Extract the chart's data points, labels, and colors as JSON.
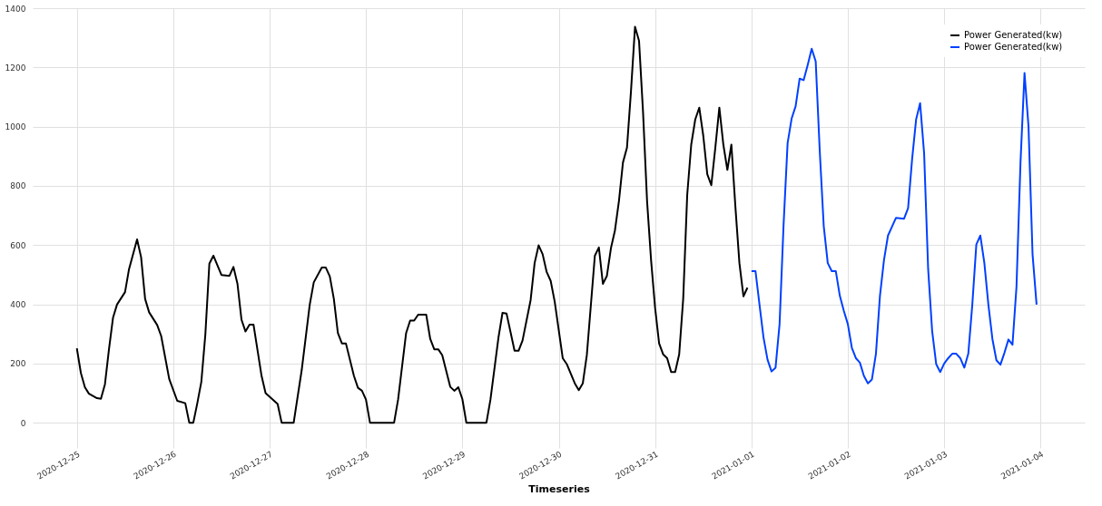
{
  "chart_data": {
    "type": "line",
    "xlabel": "Timeseries",
    "xlim": [
      "2020-12-24T13:00",
      "2021-01-04T11:00"
    ],
    "xticks": [
      {
        "value": "2020-12-25",
        "label": "2020-12-25"
      },
      {
        "value": "2020-12-26",
        "label": "2020-12-26"
      },
      {
        "value": "2020-12-27",
        "label": "2020-12-27"
      },
      {
        "value": "2020-12-28",
        "label": "2020-12-28"
      },
      {
        "value": "2020-12-29",
        "label": "2020-12-29"
      },
      {
        "value": "2020-12-30",
        "label": "2020-12-30"
      },
      {
        "value": "2020-12-31",
        "label": "2020-12-31"
      },
      {
        "value": "2021-01-01",
        "label": "2021-01-01"
      },
      {
        "value": "2021-01-02",
        "label": "2021-01-02"
      },
      {
        "value": "2021-01-03",
        "label": "2021-01-03"
      },
      {
        "value": "2021-01-04",
        "label": "2021-01-04"
      }
    ],
    "ylim": [
      -70,
      1400
    ],
    "yticks": [
      0,
      200,
      400,
      600,
      800,
      1000,
      1200,
      1400
    ],
    "grid": true,
    "legend": "top right",
    "marker": "none",
    "line_style": "solid",
    "series": [
      {
        "name": "Power Generated(kw)",
        "color": "#000000",
        "x": [
          "2020-12-25T00:00",
          "2020-12-25T01:00",
          "2020-12-25T02:00",
          "2020-12-25T03:00",
          "2020-12-25T05:00",
          "2020-12-25T06:00",
          "2020-12-25T07:00",
          "2020-12-25T08:00",
          "2020-12-25T09:00",
          "2020-12-25T10:00",
          "2020-12-25T12:00",
          "2020-12-25T13:00",
          "2020-12-25T15:00",
          "2020-12-25T16:00",
          "2020-12-25T17:00",
          "2020-12-25T18:00",
          "2020-12-25T20:00",
          "2020-12-25T21:00",
          "2020-12-25T23:00",
          "2020-12-26T01:00",
          "2020-12-26T03:00",
          "2020-12-26T04:00",
          "2020-12-26T05:00",
          "2020-12-26T06:00",
          "2020-12-26T07:00",
          "2020-12-26T08:00",
          "2020-12-26T09:00",
          "2020-12-26T10:00",
          "2020-12-26T12:00",
          "2020-12-26T14:00",
          "2020-12-26T15:00",
          "2020-12-26T16:00",
          "2020-12-26T17:00",
          "2020-12-26T18:00",
          "2020-12-26T19:00",
          "2020-12-26T20:00",
          "2020-12-26T22:00",
          "2020-12-26T23:00",
          "2020-12-27T02:00",
          "2020-12-27T03:00",
          "2020-12-27T06:00",
          "2020-12-27T08:00",
          "2020-12-27T10:00",
          "2020-12-27T11:00",
          "2020-12-27T13:00",
          "2020-12-27T14:00",
          "2020-12-27T15:00",
          "2020-12-27T16:00",
          "2020-12-27T17:00",
          "2020-12-27T18:00",
          "2020-12-27T19:00",
          "2020-12-27T21:00",
          "2020-12-27T22:00",
          "2020-12-27T23:00",
          "2020-12-28T00:00",
          "2020-12-28T01:00",
          "2020-12-28T07:00",
          "2020-12-28T08:00",
          "2020-12-28T10:00",
          "2020-12-28T11:00",
          "2020-12-28T12:00",
          "2020-12-28T13:00",
          "2020-12-28T15:00",
          "2020-12-28T16:00",
          "2020-12-28T17:00",
          "2020-12-28T18:00",
          "2020-12-28T19:00",
          "2020-12-28T21:00",
          "2020-12-28T22:00",
          "2020-12-28T23:00",
          "2020-12-29T00:00",
          "2020-12-29T01:00",
          "2020-12-29T06:00",
          "2020-12-29T07:00",
          "2020-12-29T09:00",
          "2020-12-29T10:00",
          "2020-12-29T11:00",
          "2020-12-29T13:00",
          "2020-12-29T14:00",
          "2020-12-29T15:00",
          "2020-12-29T17:00",
          "2020-12-29T18:00",
          "2020-12-29T19:00",
          "2020-12-29T20:00",
          "2020-12-29T21:00",
          "2020-12-29T22:00",
          "2020-12-29T23:00",
          "2020-12-30T01:00",
          "2020-12-30T02:00",
          "2020-12-30T04:00",
          "2020-12-30T05:00",
          "2020-12-30T06:00",
          "2020-12-30T07:00",
          "2020-12-30T09:00",
          "2020-12-30T10:00",
          "2020-12-30T11:00",
          "2020-12-30T12:00",
          "2020-12-30T13:00",
          "2020-12-30T14:00",
          "2020-12-30T15:00",
          "2020-12-30T16:00",
          "2020-12-30T17:00",
          "2020-12-30T18:00",
          "2020-12-30T19:00",
          "2020-12-30T20:00",
          "2020-12-30T21:00",
          "2020-12-30T22:00",
          "2020-12-30T23:00",
          "2020-12-31T00:00",
          "2020-12-31T01:00",
          "2020-12-31T02:00",
          "2020-12-31T03:00",
          "2020-12-31T04:00",
          "2020-12-31T05:00",
          "2020-12-31T06:00",
          "2020-12-31T07:00",
          "2020-12-31T08:00",
          "2020-12-31T09:00",
          "2020-12-31T10:00",
          "2020-12-31T11:00",
          "2020-12-31T12:00",
          "2020-12-31T13:00",
          "2020-12-31T14:00",
          "2020-12-31T15:00",
          "2020-12-31T16:00",
          "2020-12-31T17:00",
          "2020-12-31T18:00",
          "2020-12-31T19:00",
          "2020-12-31T20:00",
          "2020-12-31T21:00",
          "2020-12-31T22:00",
          "2020-12-31T23:00"
        ],
        "values": [
          251,
          168,
          120,
          98,
          83,
          81,
          130,
          248,
          354,
          399,
          441,
          519,
          619,
          559,
          418,
          373,
          330,
          293,
          148,
          74,
          66,
          0,
          0,
          66,
          138,
          298,
          537,
          564,
          499,
          496,
          526,
          469,
          348,
          308,
          331,
          331,
          158,
          100,
          63,
          0,
          0,
          178,
          399,
          474,
          524,
          524,
          494,
          418,
          303,
          268,
          268,
          158,
          118,
          108,
          78,
          0,
          0,
          78,
          303,
          345,
          345,
          365,
          365,
          283,
          248,
          248,
          228,
          121,
          108,
          120,
          80,
          0,
          0,
          78,
          288,
          371,
          369,
          243,
          243,
          278,
          414,
          539,
          599,
          569,
          509,
          479,
          409,
          218,
          198,
          133,
          110,
          133,
          228,
          564,
          592,
          469,
          496,
          589,
          649,
          749,
          879,
          929,
          1120,
          1337,
          1290,
          1049,
          749,
          549,
          388,
          268,
          231,
          218,
          171,
          171,
          231,
          418,
          769,
          939,
          1024,
          1064,
          969,
          839,
          802,
          929,
          1064,
          939,
          854,
          939,
          729,
          539,
          427,
          456
        ]
      },
      {
        "name": "Power Generated(kw)",
        "color": "#0040ff",
        "x": [
          "2021-01-01T00:00",
          "2021-01-01T01:00",
          "2021-01-01T02:00",
          "2021-01-01T03:00",
          "2021-01-01T04:00",
          "2021-01-01T05:00",
          "2021-01-01T06:00",
          "2021-01-01T07:00",
          "2021-01-01T08:00",
          "2021-01-01T09:00",
          "2021-01-01T10:00",
          "2021-01-01T11:00",
          "2021-01-01T12:00",
          "2021-01-01T13:00",
          "2021-01-01T14:00",
          "2021-01-01T15:00",
          "2021-01-01T16:00",
          "2021-01-01T17:00",
          "2021-01-01T18:00",
          "2021-01-01T19:00",
          "2021-01-01T20:00",
          "2021-01-01T21:00",
          "2021-01-01T22:00",
          "2021-01-01T23:00",
          "2021-01-02T00:00",
          "2021-01-02T01:00",
          "2021-01-02T02:00",
          "2021-01-02T03:00",
          "2021-01-02T04:00",
          "2021-01-02T05:00",
          "2021-01-02T06:00",
          "2021-01-02T07:00",
          "2021-01-02T08:00",
          "2021-01-02T09:00",
          "2021-01-02T10:00",
          "2021-01-02T12:00",
          "2021-01-02T14:00",
          "2021-01-02T15:00",
          "2021-01-02T16:00",
          "2021-01-02T17:00",
          "2021-01-02T18:00",
          "2021-01-02T19:00",
          "2021-01-02T20:00",
          "2021-01-02T21:00",
          "2021-01-02T22:00",
          "2021-01-02T23:00",
          "2021-01-03T00:00",
          "2021-01-03T01:00",
          "2021-01-03T02:00",
          "2021-01-03T03:00",
          "2021-01-03T04:00",
          "2021-01-03T05:00",
          "2021-01-03T06:00",
          "2021-01-03T07:00",
          "2021-01-03T08:00",
          "2021-01-03T09:00",
          "2021-01-03T10:00",
          "2021-01-03T11:00",
          "2021-01-03T12:00",
          "2021-01-03T13:00",
          "2021-01-03T14:00",
          "2021-01-03T15:00",
          "2021-01-03T16:00",
          "2021-01-03T17:00",
          "2021-01-03T18:00",
          "2021-01-03T19:00",
          "2021-01-03T20:00",
          "2021-01-03T21:00",
          "2021-01-03T22:00",
          "2021-01-03T23:00"
        ],
        "values": [
          512,
          512,
          399,
          288,
          213,
          173,
          186,
          333,
          669,
          944,
          1027,
          1069,
          1162,
          1157,
          1208,
          1263,
          1220,
          919,
          664,
          539,
          512,
          512,
          429,
          378,
          333,
          253,
          218,
          203,
          158,
          133,
          146,
          233,
          429,
          549,
          632,
          692,
          689,
          724,
          889,
          1024,
          1079,
          909,
          519,
          309,
          198,
          171,
          200,
          218,
          233,
          233,
          218,
          186,
          233,
          399,
          602,
          632,
          539,
          399,
          283,
          211,
          196,
          236,
          281,
          263,
          459,
          879,
          1181,
          999,
          569,
          399
        ]
      }
    ]
  }
}
